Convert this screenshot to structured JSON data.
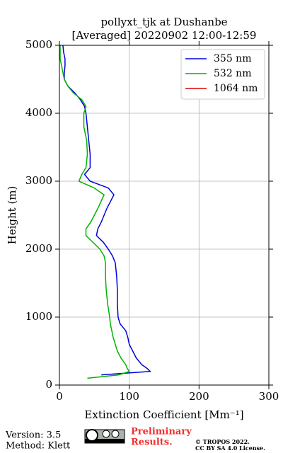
{
  "chart_data": {
    "type": "line",
    "title": [
      "pollyxt_tjk at Dushanbe",
      "[Averaged] 20220902 12:00-12:59"
    ],
    "x_label": "Extinction Coefficient [Mm⁻¹]",
    "y_label": "Height (m)",
    "heights": [
      0,
      100,
      150,
      200,
      250,
      300,
      400,
      500,
      600,
      700,
      800,
      900,
      1000,
      1200,
      1400,
      1600,
      1800,
      1900,
      2000,
      2100,
      2200,
      2300,
      2400,
      2600,
      2800,
      2900,
      3000,
      3100,
      3200,
      3400,
      3600,
      3800,
      4000,
      4100,
      4200,
      4300,
      4400,
      4500,
      4600,
      4700,
      4800,
      4900,
      5000
    ],
    "series": [
      {
        "name": "355 nm",
        "color": "#0000dd",
        "values": [
          null,
          null,
          60,
          130,
          125,
          118,
          110,
          105,
          100,
          98,
          95,
          87,
          84,
          83,
          83,
          82,
          80,
          76,
          70,
          63,
          53,
          55,
          60,
          68,
          78,
          70,
          44,
          36,
          44,
          44,
          42,
          40,
          38,
          36,
          30,
          22,
          12,
          7,
          7,
          8,
          8,
          6,
          5
        ]
      },
      {
        "name": "532 nm",
        "color": "#00b400",
        "values": [
          null,
          40,
          85,
          100,
          97,
          95,
          88,
          83,
          80,
          77,
          75,
          73,
          72,
          69,
          67,
          66,
          66,
          64,
          58,
          48,
          38,
          38,
          45,
          55,
          64,
          50,
          28,
          32,
          38,
          40,
          39,
          35,
          35,
          38,
          32,
          20,
          12,
          7,
          5,
          3,
          1,
          1,
          1
        ]
      },
      {
        "name": "1064 nm",
        "color": "#dd0000",
        "values": [
          null,
          null,
          null,
          null,
          null,
          null,
          null,
          null,
          null,
          null,
          null,
          null,
          null,
          null,
          null,
          null,
          null,
          null,
          null,
          null,
          null,
          null,
          null,
          null,
          null,
          null,
          null,
          null,
          null,
          null,
          null,
          null,
          null,
          null,
          null,
          null,
          null,
          null,
          null,
          null,
          null,
          null,
          null
        ]
      }
    ],
    "xlim": [
      0,
      300
    ],
    "xticks": [
      0,
      100,
      200,
      300
    ],
    "ylim": [
      0,
      5000
    ],
    "yticks": [
      0,
      1000,
      2000,
      3000,
      4000,
      5000
    ],
    "grid": true,
    "legend": "upper right"
  },
  "footer": {
    "version": "Version: 3.5",
    "method": "Method: Klett",
    "status": [
      "Preliminary",
      "Results."
    ],
    "copyright": "© TROPOS 2022.",
    "license": "CC BY SA 4.0 License."
  }
}
